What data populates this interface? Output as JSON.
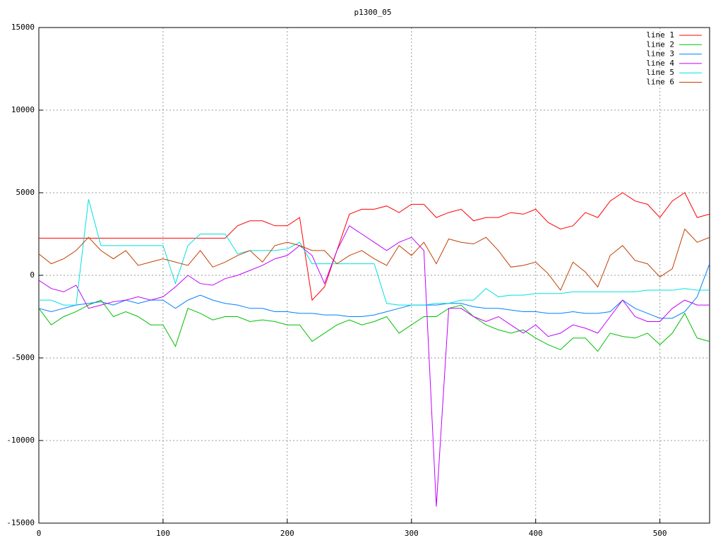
{
  "chart_data": {
    "type": "line",
    "title": "p1300_05",
    "x": [
      0,
      10,
      20,
      30,
      40,
      50,
      60,
      70,
      80,
      90,
      100,
      110,
      120,
      130,
      140,
      150,
      160,
      170,
      180,
      190,
      200,
      210,
      220,
      230,
      240,
      250,
      260,
      270,
      280,
      290,
      300,
      310,
      320,
      330,
      340,
      350,
      360,
      370,
      380,
      390,
      400,
      410,
      420,
      430,
      440,
      450,
      460,
      470,
      480,
      490,
      500,
      510,
      520,
      530,
      540
    ],
    "series": [
      {
        "name": "line 1",
        "color": "#ff0000",
        "values": [
          2250,
          2250,
          2250,
          2250,
          2250,
          2250,
          2250,
          2250,
          2250,
          2250,
          2250,
          2250,
          2250,
          2250,
          2250,
          2250,
          3000,
          3300,
          3300,
          3000,
          3000,
          3500,
          -1500,
          -700,
          1500,
          3700,
          4000,
          4000,
          4200,
          3800,
          4300,
          4300,
          3500,
          3800,
          4000,
          3300,
          3500,
          3500,
          3800,
          3700,
          4000,
          3200,
          2800,
          3000,
          3800,
          3500,
          4500,
          5000,
          4500,
          4300,
          3500,
          4500,
          5000,
          3500,
          3700
        ]
      },
      {
        "name": "line 2",
        "color": "#00c000",
        "values": [
          -2000,
          -3000,
          -2500,
          -2200,
          -1800,
          -1500,
          -2500,
          -2200,
          -2500,
          -3000,
          -3000,
          -4300,
          -2000,
          -2300,
          -2700,
          -2500,
          -2500,
          -2800,
          -2700,
          -2800,
          -3000,
          -3000,
          -4000,
          -3500,
          -3000,
          -2700,
          -3000,
          -2800,
          -2500,
          -3500,
          -3000,
          -2500,
          -2500,
          -2000,
          -1800,
          -2500,
          -3000,
          -3300,
          -3500,
          -3300,
          -3800,
          -4200,
          -4500,
          -3800,
          -3800,
          -4600,
          -3500,
          -3700,
          -3800,
          -3500,
          -4200,
          -3500,
          -2300,
          -3800,
          -4000
        ]
      },
      {
        "name": "line 3",
        "color": "#0080ff",
        "values": [
          -2000,
          -2200,
          -2000,
          -1800,
          -1700,
          -1600,
          -1800,
          -1500,
          -1700,
          -1500,
          -1500,
          -2000,
          -1500,
          -1200,
          -1500,
          -1700,
          -1800,
          -2000,
          -2000,
          -2200,
          -2200,
          -2300,
          -2300,
          -2400,
          -2400,
          -2500,
          -2500,
          -2400,
          -2200,
          -2000,
          -1800,
          -1800,
          -1800,
          -1700,
          -1700,
          -1900,
          -2000,
          -2000,
          -2100,
          -2200,
          -2200,
          -2300,
          -2300,
          -2200,
          -2300,
          -2300,
          -2200,
          -1500,
          -2000,
          -2300,
          -2600,
          -2600,
          -2200,
          -1300,
          700
        ]
      },
      {
        "name": "line 4",
        "color": "#c000ff",
        "values": [
          -300,
          -800,
          -1000,
          -600,
          -2000,
          -1800,
          -1600,
          -1500,
          -1300,
          -1500,
          -1300,
          -700,
          0,
          -500,
          -600,
          -200,
          0,
          300,
          600,
          1000,
          1200,
          1800,
          1200,
          -500,
          1500,
          3000,
          2500,
          2000,
          1500,
          2000,
          2300,
          1500,
          -14000,
          -2000,
          -2000,
          -2500,
          -2800,
          -2500,
          -3000,
          -3500,
          -3000,
          -3700,
          -3500,
          -3000,
          -3200,
          -3500,
          -2500,
          -1500,
          -2500,
          -2800,
          -2800,
          -2000,
          -1500,
          -1800,
          -1800
        ]
      },
      {
        "name": "line 5",
        "color": "#00e0e0",
        "values": [
          -1500,
          -1500,
          -1800,
          -1800,
          4600,
          1800,
          1800,
          1800,
          1800,
          1800,
          1800,
          -500,
          1800,
          2500,
          2500,
          2500,
          1300,
          1500,
          1500,
          1500,
          1600,
          2000,
          700,
          700,
          700,
          700,
          700,
          700,
          -1700,
          -1800,
          -1800,
          -1800,
          -1700,
          -1700,
          -1500,
          -1500,
          -800,
          -1300,
          -1200,
          -1200,
          -1100,
          -1100,
          -1100,
          -1000,
          -1000,
          -1000,
          -1000,
          -1000,
          -1000,
          -900,
          -900,
          -900,
          -800,
          -900,
          -900
        ]
      },
      {
        "name": "line 6",
        "color": "#c04000",
        "values": [
          1300,
          700,
          1000,
          1500,
          2300,
          1500,
          1000,
          1500,
          600,
          800,
          1000,
          800,
          600,
          1500,
          500,
          800,
          1200,
          1500,
          800,
          1800,
          2000,
          1800,
          1500,
          1500,
          700,
          1200,
          1500,
          1000,
          600,
          1800,
          1200,
          2000,
          700,
          2200,
          2000,
          1900,
          2300,
          1500,
          500,
          600,
          800,
          100,
          -900,
          800,
          200,
          -700,
          1200,
          1800,
          900,
          700,
          -100,
          400,
          2800,
          2000,
          2300
        ]
      }
    ],
    "xlim": [
      0,
      540
    ],
    "ylim": [
      -15000,
      15000
    ],
    "xticks": [
      0,
      100,
      200,
      300,
      400,
      500
    ],
    "yticks": [
      -15000,
      -10000,
      -5000,
      0,
      5000,
      10000,
      15000
    ],
    "grid": true,
    "legend": "top-right"
  }
}
